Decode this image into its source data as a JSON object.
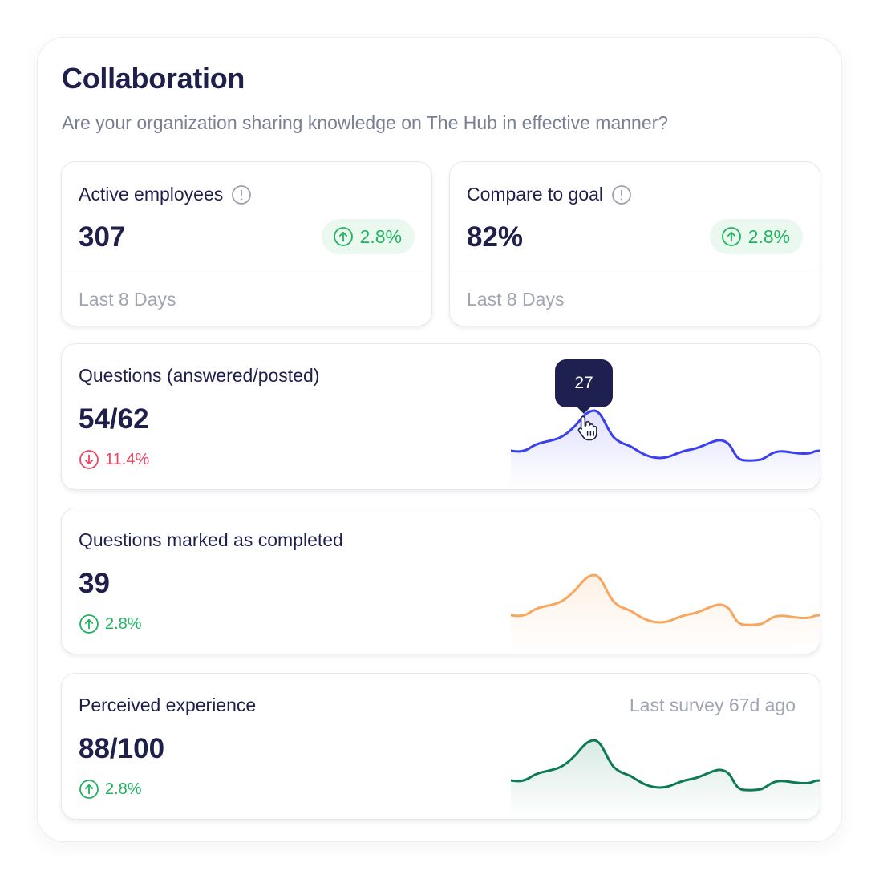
{
  "panel": {
    "title": "Collaboration",
    "subtitle": "Are your organization sharing knowledge on The Hub in effective manner?"
  },
  "kpis": [
    {
      "label": "Active employees",
      "value": "307",
      "change": "2.8%",
      "trend": "up",
      "footer": "Last 8 Days"
    },
    {
      "label": "Compare to goal",
      "value": "82%",
      "change": "2.8%",
      "trend": "up",
      "footer": "Last 8 Days"
    }
  ],
  "metrics": [
    {
      "label": "Questions (answered/posted)",
      "value": "54/62",
      "change": "11.4%",
      "trend": "down",
      "color": "#3a3ff0",
      "tooltip": "27"
    },
    {
      "label": "Questions marked as completed",
      "value": "39",
      "change": "2.8%",
      "trend": "up",
      "color": "#f8a65e"
    },
    {
      "label": "Perceived experience",
      "value": "88/100",
      "change": "2.8%",
      "trend": "up",
      "color": "#0b7a55",
      "survey": "Last survey 67d ago"
    }
  ],
  "icons": {
    "info": "info-circle-icon",
    "up": "arrow-up-circle-icon",
    "down": "arrow-down-circle-icon",
    "cursor": "hand-pointer-icon"
  },
  "colors": {
    "up": "#1eb35f",
    "down": "#ef4461",
    "pill_bg": "#eaf8ef"
  }
}
